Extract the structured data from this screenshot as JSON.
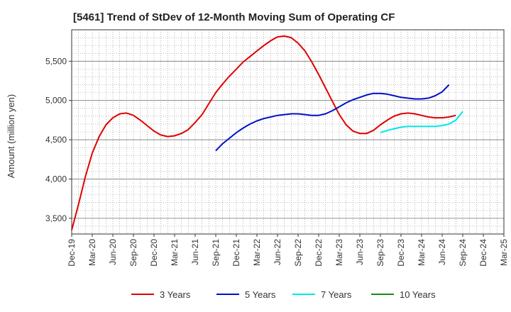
{
  "chart_data": {
    "type": "line",
    "title": "[5461]  Trend of StDev of 12-Month Moving Sum of Operating CF",
    "xlabel": "",
    "ylabel": "Amount (million yen)",
    "ylim": [
      3300,
      5900
    ],
    "yticks": [
      3500,
      4000,
      4500,
      5000,
      5500
    ],
    "ytick_labels": [
      "3,500",
      "4,000",
      "4,500",
      "5,000",
      "5,500"
    ],
    "x_start": "Dec-19",
    "x_end": "Mar-25",
    "xtick_labels": [
      "Dec-19",
      "Mar-20",
      "Jun-20",
      "Sep-20",
      "Dec-20",
      "Mar-21",
      "Jun-21",
      "Sep-21",
      "Dec-21",
      "Mar-22",
      "Jun-22",
      "Sep-22",
      "Dec-22",
      "Mar-23",
      "Jun-23",
      "Sep-23",
      "Dec-23",
      "Mar-24",
      "Jun-24",
      "Sep-24",
      "Dec-24",
      "Mar-25"
    ],
    "grid": true,
    "legend_position": "bottom",
    "series": [
      {
        "name": "3 Years",
        "color": "#e00000",
        "start": "Dec-19",
        "values": [
          3350,
          3680,
          4030,
          4330,
          4540,
          4690,
          4780,
          4830,
          4840,
          4810,
          4750,
          4680,
          4610,
          4560,
          4540,
          4550,
          4580,
          4630,
          4720,
          4820,
          4960,
          5100,
          5210,
          5310,
          5400,
          5490,
          5560,
          5630,
          5700,
          5760,
          5810,
          5820,
          5800,
          5730,
          5630,
          5490,
          5330,
          5160,
          4990,
          4820,
          4690,
          4610,
          4580,
          4580,
          4620,
          4690,
          4750,
          4800,
          4830,
          4840,
          4830,
          4810,
          4790,
          4780,
          4780,
          4790,
          4810
        ]
      },
      {
        "name": "5 Years",
        "color": "#0010c8",
        "start": "Sep-21",
        "values": [
          4360,
          4450,
          4520,
          4590,
          4650,
          4700,
          4740,
          4770,
          4790,
          4810,
          4820,
          4830,
          4830,
          4820,
          4810,
          4810,
          4830,
          4870,
          4920,
          4970,
          5010,
          5040,
          5070,
          5090,
          5090,
          5080,
          5060,
          5040,
          5030,
          5020,
          5020,
          5030,
          5060,
          5110,
          5200
        ]
      },
      {
        "name": "7 Years",
        "color": "#00e8e8",
        "start": "Sep-23",
        "values": [
          4590,
          4620,
          4640,
          4660,
          4670,
          4670,
          4670,
          4670,
          4670,
          4680,
          4700,
          4750,
          4860
        ]
      },
      {
        "name": "10 Years",
        "color": "#1a8a1a",
        "start": "Sep-24",
        "values": []
      }
    ]
  }
}
